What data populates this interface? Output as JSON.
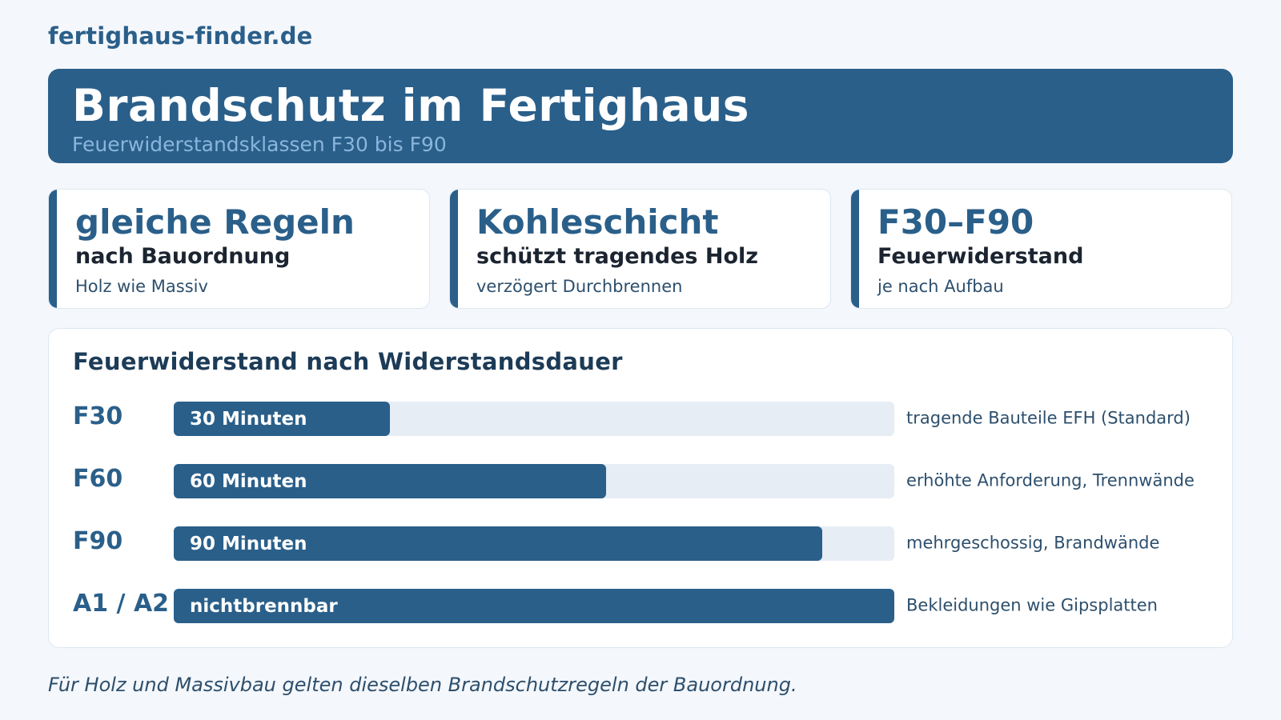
{
  "site": {
    "brand": "fertighaus-finder.de"
  },
  "hero": {
    "title": "Brandschutz im Fertighaus",
    "subtitle": "Feuerwiderstandsklassen F30 bis F90"
  },
  "cards": [
    {
      "headline": "gleiche Regeln",
      "strong": "nach Bauordnung",
      "note": "Holz wie Massiv"
    },
    {
      "headline": "Kohleschicht",
      "strong": "schützt tragendes Holz",
      "note": "verzögert Durchbrennen"
    },
    {
      "headline": "F30–F90",
      "strong": "Feuerwiderstand",
      "note": "je nach Aufbau"
    }
  ],
  "colors": {
    "primary": "#2a5f8a",
    "track": "#e6edf5",
    "hero_subtitle": "#8ab6dc",
    "background": "#f4f7fb"
  },
  "chart_data": {
    "type": "bar",
    "orientation": "horizontal",
    "title": "Feuerwiderstand nach Widerstandsdauer",
    "categories": [
      "F30",
      "F60",
      "F90",
      "A1 / A2"
    ],
    "values": [
      30,
      60,
      90,
      100
    ],
    "value_scale_max": 100,
    "bar_labels": [
      "30 Minuten",
      "60 Minuten",
      "90 Minuten",
      "nichtbrennbar"
    ],
    "annotations": [
      "tragende Bauteile EFH (Standard)",
      "erhöhte Anforderung, Trennwände",
      "mehrgeschossig, Brandwände",
      "Bekleidungen wie Gipsplatten"
    ],
    "grid": false,
    "legend": "none"
  },
  "footer": {
    "note": "Für Holz und Massivbau gelten dieselben Brandschutzregeln der Bauordnung."
  }
}
